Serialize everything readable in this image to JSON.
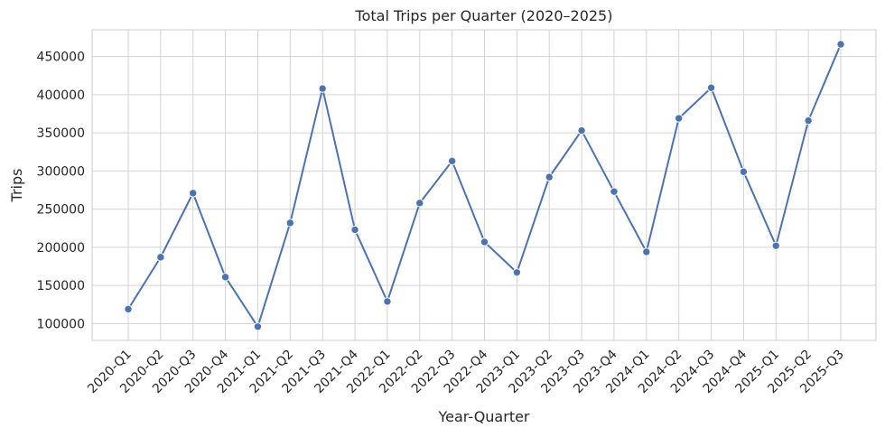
{
  "chart_data": {
    "type": "line",
    "title": "Total Trips per Quarter (2020–2025)",
    "xlabel": "Year-Quarter",
    "ylabel": "Trips",
    "categories": [
      "2020-Q1",
      "2020-Q2",
      "2020-Q3",
      "2020-Q4",
      "2021-Q1",
      "2021-Q2",
      "2021-Q3",
      "2021-Q4",
      "2022-Q1",
      "2022-Q2",
      "2022-Q3",
      "2022-Q4",
      "2023-Q1",
      "2023-Q2",
      "2023-Q3",
      "2023-Q4",
      "2024-Q1",
      "2024-Q2",
      "2024-Q3",
      "2024-Q4",
      "2025-Q1",
      "2025-Q2",
      "2025-Q3"
    ],
    "series": [
      {
        "values": [
          119000,
          187000,
          271000,
          161000,
          96000,
          232000,
          408000,
          223000,
          129000,
          258000,
          313000,
          207000,
          167000,
          292000,
          353000,
          273000,
          194000,
          369000,
          409000,
          299000,
          202000,
          366000,
          466000
        ]
      }
    ],
    "ylim": [
      78000,
      485000
    ],
    "yticks": [
      "100000",
      "150000",
      "200000",
      "250000",
      "300000",
      "350000",
      "400000",
      "450000"
    ],
    "grid": true,
    "colors": {
      "line": "#4c72b0",
      "grid": "#d3d3d3",
      "frame": "#cccccc",
      "text": "#262626"
    }
  }
}
